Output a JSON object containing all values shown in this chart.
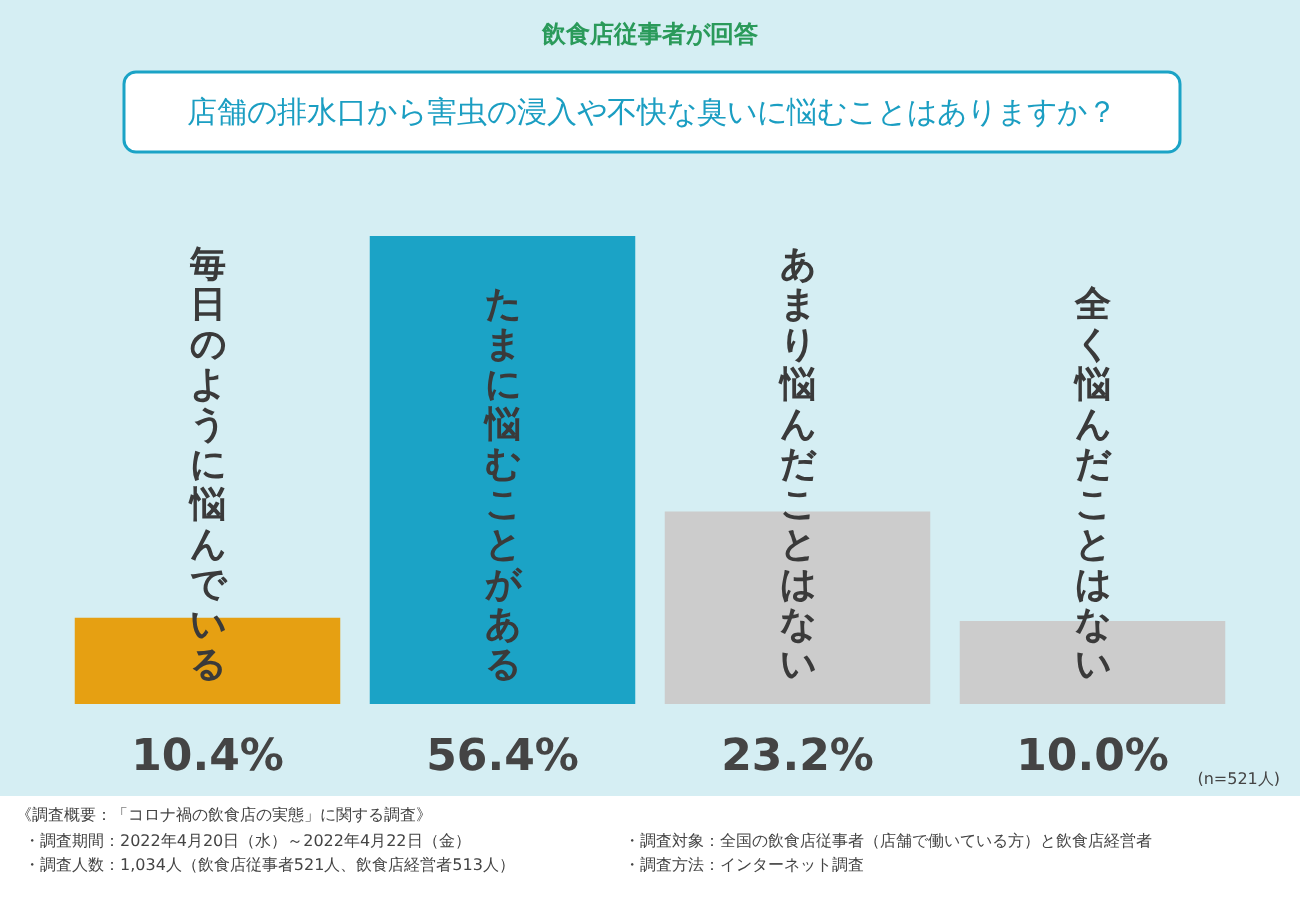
{
  "chart_data": {
    "type": "bar",
    "title": "店舗の排水口から害虫の浸入や不快な臭いに悩むことはありますか？",
    "subtitle": "飲食店従事者が回答",
    "categories": [
      "毎日のように悩んでいる",
      "たまに悩むことがある",
      "あまり悩んだことはない",
      "全く悩んだことはない"
    ],
    "values": [
      10.4,
      56.4,
      23.2,
      10.0
    ],
    "colors": [
      "#e6a012",
      "#1ba3c6",
      "#cccccc",
      "#cccccc"
    ],
    "value_labels": [
      "10.4%",
      "56.4%",
      "23.2%",
      "10.0%"
    ],
    "annotations": [
      "(n=521人)",
      "《調査概要：「コロナ禍の飲食店の実態」に関する調査》",
      "・調査期間：2022年4月20日（水）～2022年4月22日（金）",
      "・調査対象：全国の飲食店従事者（店舗で働いている方）と飲食店経営者",
      "・調査人数：1,034人（飲食店従事者521人、飲食店経営者513人）",
      "・調査方法：インターネット調査"
    ]
  }
}
